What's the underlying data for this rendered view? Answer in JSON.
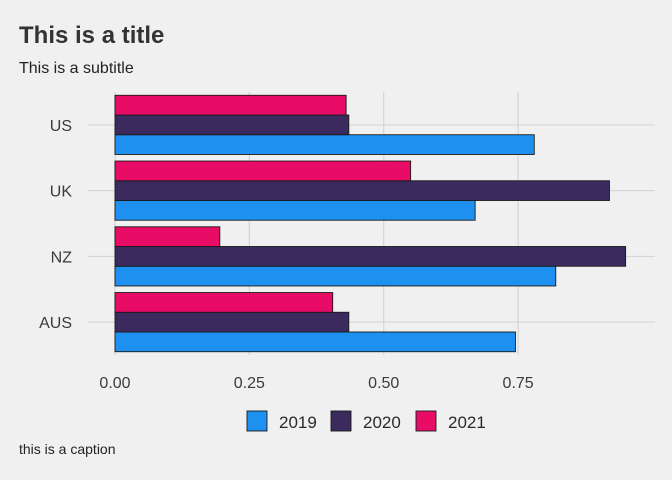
{
  "chart_data": {
    "type": "bar",
    "orientation": "horizontal",
    "title": "This is a title",
    "subtitle": "This is a subtitle",
    "caption": "this is a caption",
    "categories": [
      "US",
      "UK",
      "NZ",
      "AUS"
    ],
    "series": [
      {
        "name": "2019",
        "color": "#1e90f0",
        "values": [
          0.78,
          0.67,
          0.82,
          0.745
        ]
      },
      {
        "name": "2020",
        "color": "#3a2a5e",
        "values": [
          0.435,
          0.92,
          0.95,
          0.435
        ]
      },
      {
        "name": "2021",
        "color": "#e80c66",
        "values": [
          0.43,
          0.55,
          0.195,
          0.405
        ]
      }
    ],
    "xticks": [
      "0.00",
      "0.25",
      "0.50",
      "0.75"
    ],
    "xtick_values": [
      0,
      0.25,
      0.5,
      0.75
    ],
    "xlim": [
      0,
      1.0
    ],
    "xlabel": "",
    "ylabel": "",
    "grid": true,
    "legend_position": "bottom"
  }
}
